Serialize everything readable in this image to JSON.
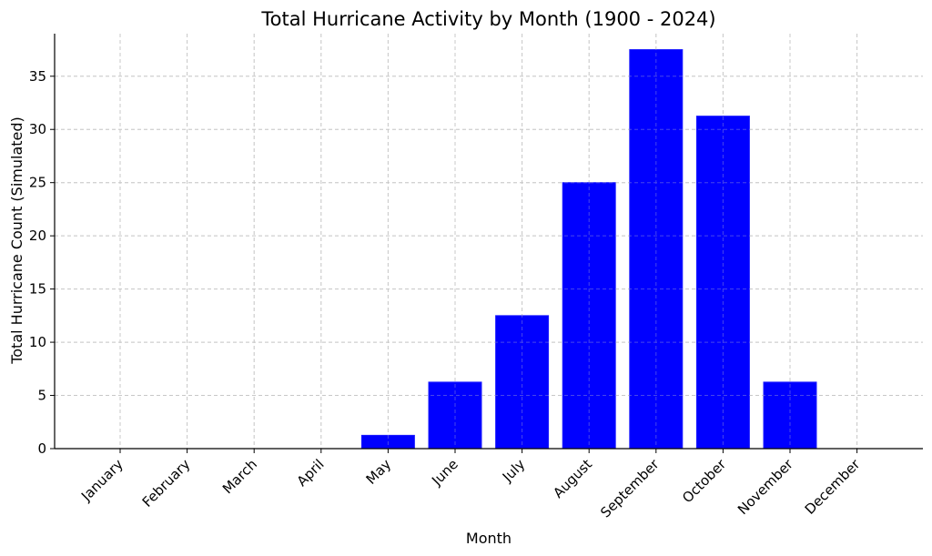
{
  "chart_data": {
    "type": "bar",
    "title": "Total Hurricane Activity by Month (1900 - 2024)",
    "xlabel": "Month",
    "ylabel": "Total Hurricane Count (Simulated)",
    "categories": [
      "January",
      "February",
      "March",
      "April",
      "May",
      "June",
      "July",
      "August",
      "September",
      "October",
      "November",
      "December"
    ],
    "values": [
      0,
      0,
      0,
      0,
      1.25,
      6.25,
      12.5,
      25,
      37.5,
      31.25,
      6.25,
      0
    ],
    "ylim": [
      0,
      39
    ],
    "yticks": [
      0,
      5,
      10,
      15,
      20,
      25,
      30,
      35
    ],
    "bar_color": "#0000ff",
    "grid": true
  }
}
